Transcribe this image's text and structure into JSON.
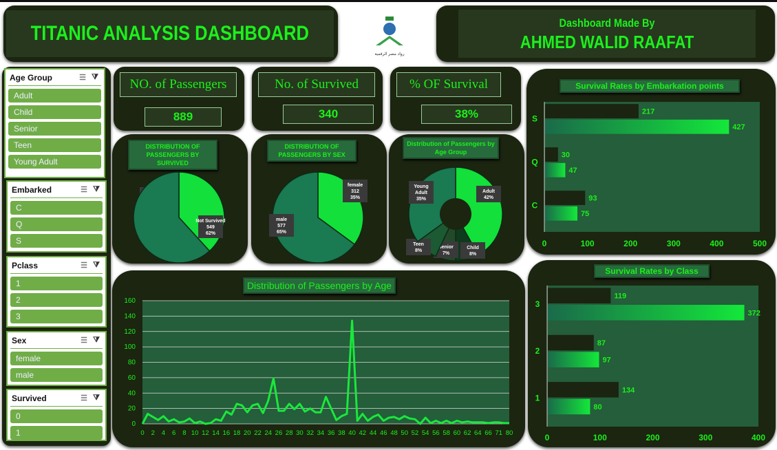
{
  "header": {
    "title": "TITANIC ANALYSIS DASHBOARD",
    "made_by": "Dashboard Made By",
    "author": "AHMED WALID RAAFAT",
    "logo_text": "رواد مصر الرقمية"
  },
  "slicers": [
    {
      "title": "Age Group",
      "items": [
        "Adult",
        "Child",
        "Senior",
        "Teen",
        "Young Adult"
      ]
    },
    {
      "title": "Embarked",
      "items": [
        "C",
        "Q",
        "S"
      ]
    },
    {
      "title": "Pclass",
      "items": [
        "1",
        "2",
        "3"
      ]
    },
    {
      "title": "Sex",
      "items": [
        "female",
        "male"
      ]
    },
    {
      "title": "Survived",
      "items": [
        "0",
        "1"
      ]
    }
  ],
  "kpis": [
    {
      "label": "NO. of Passengers",
      "value": "889"
    },
    {
      "label": "No. of Survived",
      "value": "340"
    },
    {
      "label": "% OF Survival",
      "value": "38%"
    }
  ],
  "colors": {
    "bright": "#13e03a",
    "teal": "#1a7a52",
    "dark": "#1a2410",
    "plot": "#245e3a"
  },
  "chart_data": [
    {
      "type": "pie",
      "title": "DISTRIBUTION OF PASSENGERS BY SURVIVED",
      "slices": [
        {
          "label": "Survived",
          "value": 340,
          "pct": "38%"
        },
        {
          "label": "Not Survived",
          "value": 549,
          "pct": "62%"
        }
      ]
    },
    {
      "type": "pie",
      "title": "DISTRIBUTION OF PASSENGERS BY SEX",
      "slices": [
        {
          "label": "female",
          "value": 312,
          "pct": "35%"
        },
        {
          "label": "male",
          "value": 577,
          "pct": "65%"
        }
      ]
    },
    {
      "type": "pie",
      "title": "Distribution of Passengers by Age Group",
      "slices": [
        {
          "label": "Adult",
          "pct": "42%",
          "value": 42
        },
        {
          "label": "Child",
          "pct": "8%",
          "value": 8
        },
        {
          "label": "Senior",
          "pct": "7%",
          "value": 7
        },
        {
          "label": "Teen",
          "pct": "8%",
          "value": 8
        },
        {
          "label": "Young Adult",
          "pct": "35%",
          "value": 35
        }
      ]
    },
    {
      "type": "line",
      "title": "Distribution of Passengers by Age",
      "ylim": [
        0,
        160
      ],
      "yticks": [
        0,
        20,
        40,
        60,
        80,
        100,
        120,
        140,
        160
      ],
      "x": [
        0,
        1,
        2,
        3,
        4,
        5,
        6,
        7,
        8,
        9,
        10,
        11,
        12,
        13,
        14,
        15,
        16,
        17,
        18,
        19,
        20,
        21,
        22,
        23,
        24,
        25,
        26,
        27,
        28,
        29,
        30,
        31,
        32,
        33,
        34,
        35,
        36,
        37,
        38,
        39,
        40,
        41,
        42,
        43,
        44,
        45,
        46,
        47,
        48,
        49,
        50,
        51,
        52,
        53,
        54,
        55,
        56,
        57,
        58,
        59,
        60,
        61,
        62,
        63,
        64,
        65,
        66,
        70,
        71,
        74,
        80
      ],
      "y": [
        0,
        13,
        9,
        5,
        10,
        3,
        6,
        2,
        3,
        7,
        1,
        3,
        0,
        1,
        6,
        4,
        16,
        12,
        26,
        24,
        15,
        24,
        26,
        14,
        30,
        59,
        17,
        17,
        26,
        19,
        26,
        16,
        20,
        15,
        15,
        35,
        20,
        5,
        10,
        13,
        134,
        4,
        13,
        4,
        9,
        12,
        4,
        8,
        9,
        6,
        10,
        7,
        6,
        0,
        8,
        1,
        4,
        1,
        4,
        1,
        4,
        2,
        3,
        2,
        2,
        2,
        1,
        2,
        2,
        1,
        1
      ]
    },
    {
      "type": "bar",
      "title": "Survival Rates by Embarkation points",
      "categories": [
        "S",
        "Q",
        "C"
      ],
      "xlim": [
        0,
        500
      ],
      "xticks": [
        0,
        100,
        200,
        300,
        400,
        500
      ],
      "series": [
        {
          "values": [
            217,
            30,
            93
          ]
        },
        {
          "values": [
            427,
            47,
            75
          ]
        }
      ]
    },
    {
      "type": "bar",
      "title": "Survival Rates by Class",
      "categories": [
        "3",
        "2",
        "1"
      ],
      "xlim": [
        0,
        400
      ],
      "xticks": [
        0,
        100,
        200,
        300,
        400
      ],
      "series": [
        {
          "values": [
            119,
            87,
            134
          ]
        },
        {
          "values": [
            372,
            97,
            80
          ]
        }
      ]
    }
  ]
}
